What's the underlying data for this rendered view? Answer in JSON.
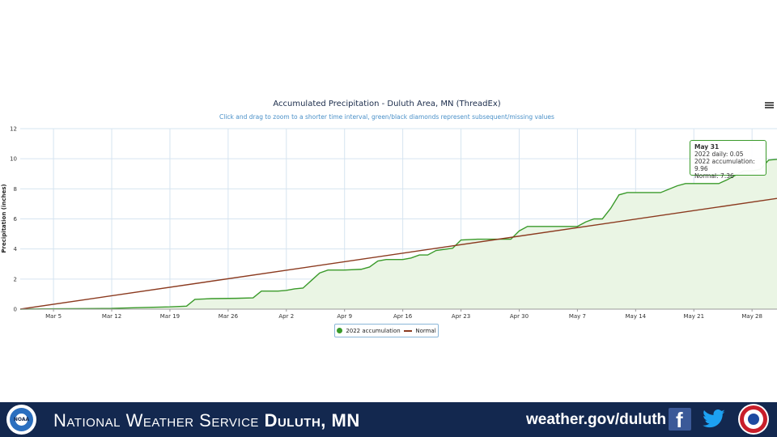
{
  "chart_data": {
    "type": "area",
    "title": "Accumulated Precipitation - Duluth Area, MN (ThreadEx)",
    "subtitle": "Click and drag to zoom to a shorter time interval, green/black diamonds represent subsequent/missing values",
    "ylabel": "Precipitation (inches)",
    "ylim": [
      0,
      12
    ],
    "yticks": [
      "0",
      "2",
      "4",
      "6",
      "8",
      "10",
      "12"
    ],
    "xlim": [
      0,
      91
    ],
    "xticks": [
      {
        "label": "Mar 5",
        "day": 4
      },
      {
        "label": "Mar 12",
        "day": 11
      },
      {
        "label": "Mar 19",
        "day": 18
      },
      {
        "label": "Mar 26",
        "day": 25
      },
      {
        "label": "Apr 2",
        "day": 32
      },
      {
        "label": "Apr 9",
        "day": 39
      },
      {
        "label": "Apr 16",
        "day": 46
      },
      {
        "label": "Apr 23",
        "day": 53
      },
      {
        "label": "Apr 30",
        "day": 60
      },
      {
        "label": "May 7",
        "day": 67
      },
      {
        "label": "May 14",
        "day": 74
      },
      {
        "label": "May 21",
        "day": 81
      },
      {
        "label": "May 28",
        "day": 88
      }
    ],
    "grid": true,
    "legend_position": "bottom-center",
    "series": [
      {
        "name": "2022 accumulation",
        "color": "#3a9a2a",
        "points": [
          [
            0,
            0
          ],
          [
            4,
            0.02
          ],
          [
            11,
            0.05
          ],
          [
            14,
            0.1
          ],
          [
            18,
            0.15
          ],
          [
            20,
            0.2
          ],
          [
            21,
            0.65
          ],
          [
            23,
            0.7
          ],
          [
            26,
            0.72
          ],
          [
            28,
            0.75
          ],
          [
            29,
            1.2
          ],
          [
            31,
            1.2
          ],
          [
            32,
            1.25
          ],
          [
            33,
            1.35
          ],
          [
            34,
            1.4
          ],
          [
            35,
            1.9
          ],
          [
            36,
            2.4
          ],
          [
            37,
            2.6
          ],
          [
            39,
            2.6
          ],
          [
            41,
            2.65
          ],
          [
            42,
            2.8
          ],
          [
            43,
            3.2
          ],
          [
            44,
            3.3
          ],
          [
            46,
            3.3
          ],
          [
            47,
            3.4
          ],
          [
            48,
            3.6
          ],
          [
            49,
            3.6
          ],
          [
            50,
            3.9
          ],
          [
            52,
            4.05
          ],
          [
            53,
            4.6
          ],
          [
            55,
            4.65
          ],
          [
            58,
            4.65
          ],
          [
            59,
            4.65
          ],
          [
            60,
            5.2
          ],
          [
            61,
            5.5
          ],
          [
            67,
            5.5
          ],
          [
            68,
            5.8
          ],
          [
            69,
            6.0
          ],
          [
            70,
            6.0
          ],
          [
            71,
            6.7
          ],
          [
            72,
            7.6
          ],
          [
            73,
            7.75
          ],
          [
            77,
            7.75
          ],
          [
            79,
            8.2
          ],
          [
            80,
            8.35
          ],
          [
            84,
            8.35
          ],
          [
            85,
            8.6
          ],
          [
            87,
            9.2
          ],
          [
            88,
            9.2
          ],
          [
            89,
            9.3
          ],
          [
            90,
            9.91
          ],
          [
            91,
            9.96
          ]
        ]
      },
      {
        "name": "Normal",
        "color": "#8b3a1f",
        "points": [
          [
            0,
            0
          ],
          [
            91,
            7.36
          ]
        ]
      }
    ],
    "tooltip": {
      "date": "May 31",
      "daily": "2022 daily: 0.05",
      "accum": "2022 accumulation: 9.96",
      "normal": "Normal: 7.36"
    }
  },
  "legend": {
    "accum_label": "2022 accumulation",
    "normal_label": "Normal"
  },
  "footer": {
    "org_prefix": "National Weather Service",
    "org_office": "Duluth, MN",
    "url": "weather.gov/duluth",
    "noaa_text": "NOAA",
    "facebook_icon": "facebook-icon",
    "twitter_icon": "twitter-icon",
    "nws_logo": "nws-logo"
  }
}
